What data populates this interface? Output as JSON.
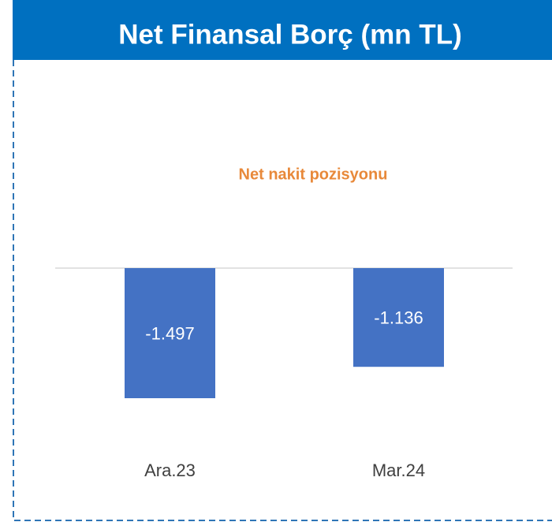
{
  "chart_data": {
    "type": "bar",
    "title": "Net Finansal Borç (mn TL)",
    "subtitle": "Net nakit pozisyonu",
    "categories": [
      "Ara.23",
      "Mar.24"
    ],
    "values": [
      -1497,
      -1136
    ],
    "value_labels": [
      "-1.497",
      "-1.136"
    ],
    "color": "#4472c4"
  }
}
